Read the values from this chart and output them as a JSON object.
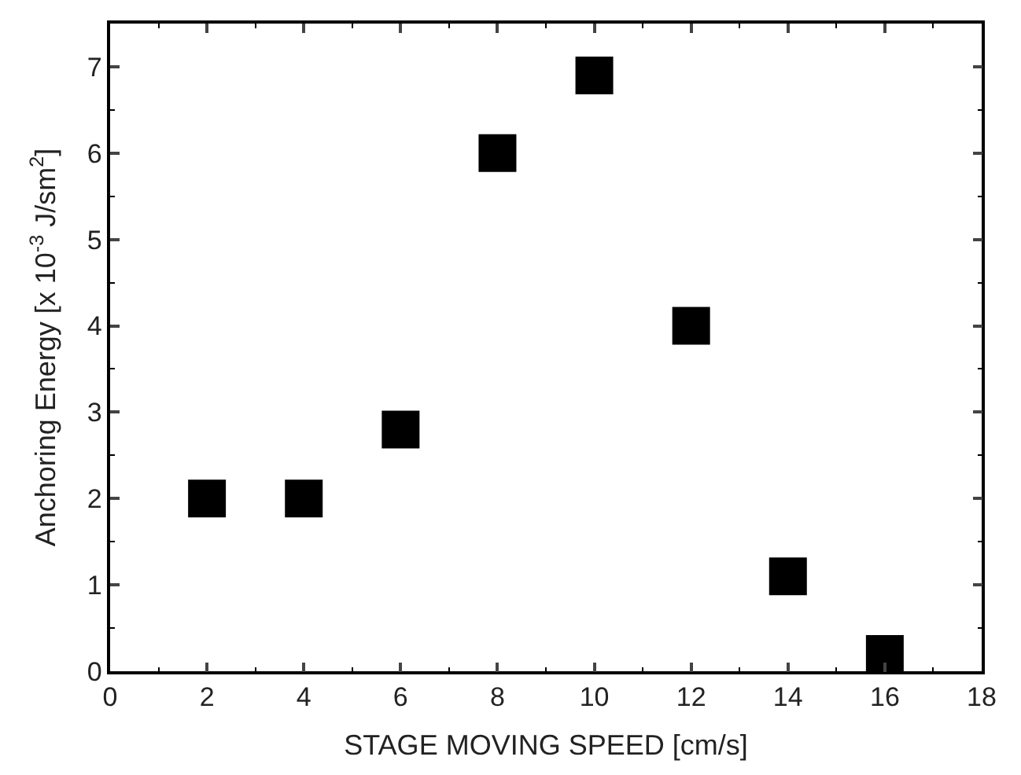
{
  "chart_data": {
    "type": "scatter",
    "xlabel": "STAGE MOVING SPEED [cm/s]",
    "ylabel": "Anchoring Energy [x 10$^{-3}$ J/sm$^{2}$]",
    "x": [
      2,
      4,
      6,
      8,
      10,
      12,
      14,
      16
    ],
    "series": [
      {
        "color": "#000000",
        "values": [
          2,
          2,
          2.8,
          6,
          6.9,
          4,
          1.1,
          0.2
        ]
      }
    ],
    "xlim": [
      0,
      18
    ],
    "xticks": [
      0,
      2,
      4,
      6,
      8,
      10,
      12,
      14,
      16,
      18
    ],
    "ylim": [
      0,
      7.5
    ],
    "yticks": [
      0,
      1,
      2,
      3,
      4,
      5,
      6,
      7
    ],
    "marker": "square"
  }
}
